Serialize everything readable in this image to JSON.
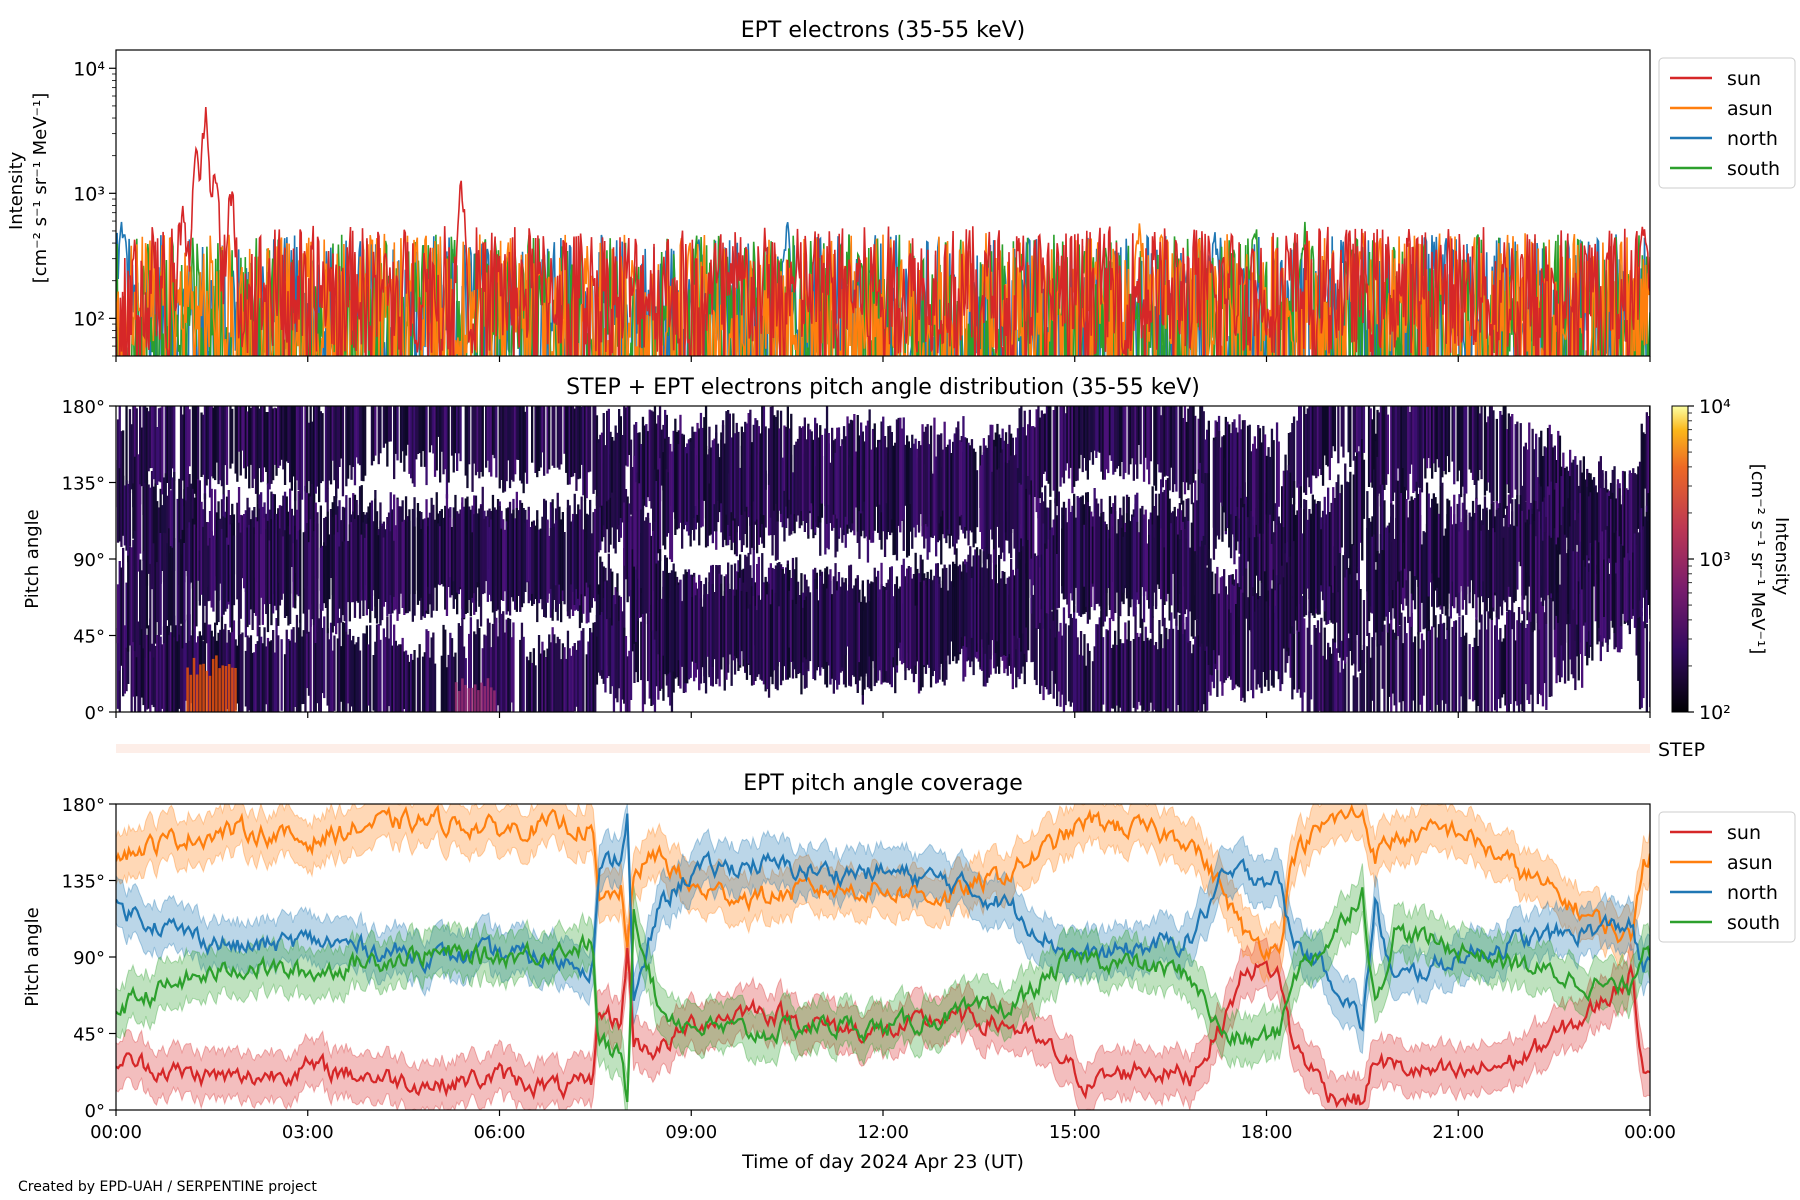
{
  "footer": "Created by EPD-UAH / SERPENTINE project",
  "xlabel": "Time of day 2024 Apr 23 (UT)",
  "xticks": [
    "00:00",
    "03:00",
    "06:00",
    "09:00",
    "12:00",
    "15:00",
    "18:00",
    "21:00",
    "00:00"
  ],
  "colors": {
    "sun": "#d62728",
    "asun": "#ff7f0e",
    "north": "#1f77b4",
    "south": "#2ca02c"
  },
  "chart_data": [
    {
      "type": "line",
      "title": "EPT electrons (35-55 keV)",
      "ylabel_lines": [
        "Intensity",
        "[cm⁻² s⁻¹ sr⁻¹ MeV⁻¹]"
      ],
      "yscale": "log",
      "ylim": [
        50,
        14000
      ],
      "yticks": [
        100,
        1000,
        10000
      ],
      "ytick_labels": [
        "10²",
        "10³",
        "10⁴"
      ],
      "xlim_hours": [
        0,
        24
      ],
      "legend": "outside-right",
      "series": [
        {
          "name": "sun",
          "color": "#d62728",
          "base": 170,
          "spread": 0.32,
          "peaks": [
            [
              1.05,
              800
            ],
            [
              1.25,
              2500
            ],
            [
              1.4,
              5500
            ],
            [
              1.55,
              1800
            ],
            [
              1.8,
              1300
            ],
            [
              5.4,
              1450
            ],
            [
              23.9,
              700
            ]
          ]
        },
        {
          "name": "asun",
          "color": "#ff7f0e",
          "base": 110,
          "spread": 0.4,
          "peaks": [
            [
              16.0,
              650
            ],
            [
              19.5,
              550
            ]
          ]
        },
        {
          "name": "north",
          "color": "#1f77b4",
          "base": 100,
          "spread": 0.42,
          "peaks": [
            [
              0.1,
              680
            ],
            [
              10.5,
              620
            ],
            [
              17.2,
              520
            ]
          ]
        },
        {
          "name": "south",
          "color": "#2ca02c",
          "base": 100,
          "spread": 0.42,
          "peaks": [
            [
              17.8,
              650
            ],
            [
              18.6,
              620
            ]
          ]
        }
      ]
    },
    {
      "type": "heatmap",
      "title": "STEP + EPT electrons pitch angle distribution (35-55 keV)",
      "ylabel": "Pitch angle",
      "ylim": [
        0,
        180
      ],
      "yticks": [
        0,
        45,
        90,
        135,
        180
      ],
      "ytick_labels": [
        "0°",
        "45°",
        "90°",
        "135°",
        "180°"
      ],
      "colorbar": {
        "label": "Intensity",
        "units": "[cm⁻² s⁻¹ sr⁻¹ MeV⁻¹]",
        "scale": "log",
        "range": [
          100,
          10000
        ],
        "tick_labels": [
          "10²",
          "10³",
          "10⁴"
        ],
        "colormap": "inferno"
      },
      "enhancements": [
        [
          1.1,
          1.9,
          0,
          35,
          "#e8540a"
        ],
        [
          5.3,
          5.9,
          0,
          20,
          "#9a2d72"
        ]
      ]
    },
    {
      "type": "line",
      "title": "",
      "strip_label": "STEP",
      "strip_color": "#fdeee8"
    },
    {
      "type": "line",
      "title": "EPT pitch angle coverage",
      "ylabel": "Pitch angle",
      "ylim": [
        0,
        180
      ],
      "yticks": [
        0,
        45,
        90,
        135,
        180
      ],
      "ytick_labels": [
        "0°",
        "45°",
        "90°",
        "135°",
        "180°"
      ],
      "xlim_hours": [
        0,
        24
      ],
      "legend": "outside-right",
      "band_halfwidth_deg": 14,
      "series": [
        {
          "name": "sun",
          "color": "#d62728",
          "knots": [
            [
              0,
              30
            ],
            [
              1,
              22
            ],
            [
              2,
              18
            ],
            [
              3,
              25
            ],
            [
              4,
              20
            ],
            [
              5,
              15
            ],
            [
              6,
              20
            ],
            [
              7,
              12
            ],
            [
              7.45,
              15
            ],
            [
              7.55,
              60
            ],
            [
              7.9,
              50
            ],
            [
              8.0,
              95
            ],
            [
              8.1,
              40
            ],
            [
              8.5,
              35
            ],
            [
              9,
              50
            ],
            [
              10,
              60
            ],
            [
              11,
              50
            ],
            [
              12,
              45
            ],
            [
              13,
              55
            ],
            [
              14,
              50
            ],
            [
              14.8,
              30
            ],
            [
              15.2,
              15
            ],
            [
              16,
              25
            ],
            [
              16.8,
              20
            ],
            [
              17.3,
              50
            ],
            [
              17.7,
              85
            ],
            [
              18.2,
              80
            ],
            [
              18.4,
              40
            ],
            [
              19,
              10
            ],
            [
              19.5,
              5
            ],
            [
              19.7,
              30
            ],
            [
              20,
              25
            ],
            [
              21,
              20
            ],
            [
              22,
              30
            ],
            [
              23,
              55
            ],
            [
              23.7,
              80
            ],
            [
              23.9,
              25
            ],
            [
              24,
              30
            ]
          ]
        },
        {
          "name": "asun",
          "color": "#ff7f0e",
          "knots": [
            [
              0,
              150
            ],
            [
              1,
              160
            ],
            [
              2,
              165
            ],
            [
              3,
              158
            ],
            [
              4,
              168
            ],
            [
              5,
              170
            ],
            [
              6,
              165
            ],
            [
              7,
              168
            ],
            [
              7.45,
              165
            ],
            [
              7.55,
              120
            ],
            [
              7.9,
              130
            ],
            [
              8.0,
              90
            ],
            [
              8.1,
              140
            ],
            [
              8.5,
              150
            ],
            [
              9,
              130
            ],
            [
              10,
              125
            ],
            [
              11,
              130
            ],
            [
              12,
              130
            ],
            [
              13,
              125
            ],
            [
              14,
              140
            ],
            [
              14.8,
              160
            ],
            [
              15.2,
              170
            ],
            [
              16,
              165
            ],
            [
              16.8,
              160
            ],
            [
              17.3,
              130
            ],
            [
              17.7,
              100
            ],
            [
              18.2,
              95
            ],
            [
              18.4,
              150
            ],
            [
              19,
              170
            ],
            [
              19.5,
              175
            ],
            [
              19.7,
              150
            ],
            [
              20,
              160
            ],
            [
              21,
              165
            ],
            [
              22,
              140
            ],
            [
              23,
              115
            ],
            [
              23.7,
              100
            ],
            [
              23.9,
              150
            ],
            [
              24,
              150
            ]
          ]
        },
        {
          "name": "north",
          "color": "#1f77b4",
          "knots": [
            [
              0,
              120
            ],
            [
              1,
              105
            ],
            [
              2,
              95
            ],
            [
              3,
              100
            ],
            [
              4,
              95
            ],
            [
              5,
              90
            ],
            [
              6,
              92
            ],
            [
              7,
              88
            ],
            [
              7.45,
              85
            ],
            [
              7.55,
              140
            ],
            [
              7.9,
              150
            ],
            [
              8.0,
              175
            ],
            [
              8.1,
              60
            ],
            [
              8.5,
              120
            ],
            [
              9,
              140
            ],
            [
              10,
              145
            ],
            [
              11,
              140
            ],
            [
              12,
              140
            ],
            [
              13,
              135
            ],
            [
              14,
              120
            ],
            [
              14.8,
              95
            ],
            [
              15.2,
              90
            ],
            [
              16,
              95
            ],
            [
              16.8,
              100
            ],
            [
              17.3,
              135
            ],
            [
              17.7,
              140
            ],
            [
              18.2,
              135
            ],
            [
              18.4,
              100
            ],
            [
              19,
              80
            ],
            [
              19.5,
              50
            ],
            [
              19.7,
              120
            ],
            [
              20,
              75
            ],
            [
              21,
              90
            ],
            [
              22,
              100
            ],
            [
              23,
              105
            ],
            [
              23.7,
              110
            ],
            [
              23.9,
              80
            ],
            [
              24,
              85
            ]
          ]
        },
        {
          "name": "south",
          "color": "#2ca02c",
          "knots": [
            [
              0,
              60
            ],
            [
              1,
              75
            ],
            [
              2,
              85
            ],
            [
              3,
              80
            ],
            [
              4,
              88
            ],
            [
              5,
              92
            ],
            [
              6,
              90
            ],
            [
              7,
              95
            ],
            [
              7.45,
              98
            ],
            [
              7.55,
              40
            ],
            [
              7.9,
              30
            ],
            [
              8.0,
              5
            ],
            [
              8.1,
              120
            ],
            [
              8.5,
              60
            ],
            [
              9,
              50
            ],
            [
              10,
              45
            ],
            [
              11,
              50
            ],
            [
              12,
              48
            ],
            [
              13,
              55
            ],
            [
              14,
              60
            ],
            [
              14.8,
              85
            ],
            [
              15.2,
              90
            ],
            [
              16,
              85
            ],
            [
              16.8,
              80
            ],
            [
              17.3,
              45
            ],
            [
              17.7,
              40
            ],
            [
              18.2,
              45
            ],
            [
              18.4,
              80
            ],
            [
              19,
              100
            ],
            [
              19.5,
              130
            ],
            [
              19.7,
              60
            ],
            [
              20,
              105
            ],
            [
              21,
              95
            ],
            [
              22,
              85
            ],
            [
              23,
              75
            ],
            [
              23.7,
              70
            ],
            [
              23.9,
              100
            ],
            [
              24,
              95
            ]
          ]
        }
      ]
    }
  ]
}
